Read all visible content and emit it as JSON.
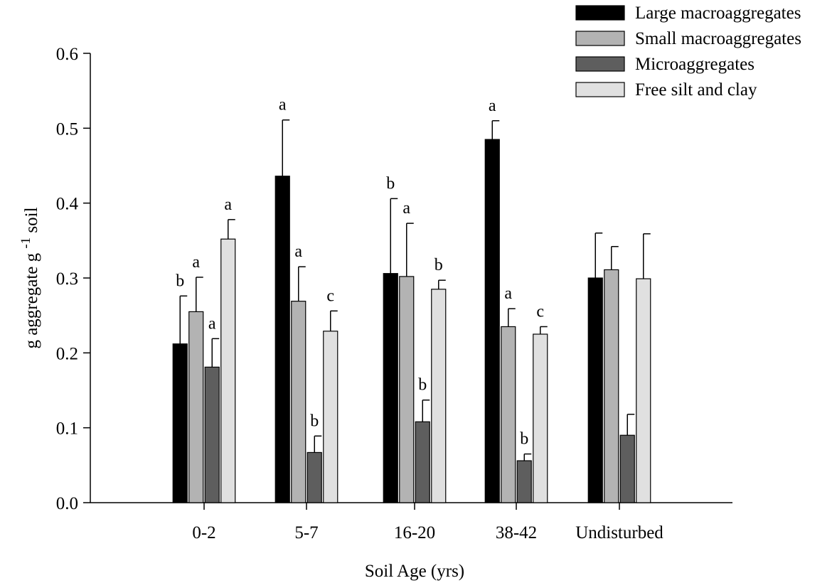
{
  "chart_data": {
    "type": "bar",
    "title": "",
    "xlabel": "Soil Age (yrs)",
    "ylabel": "g aggregate g",
    "ylabel_sup": "-1",
    "ylabel_tail": "soil",
    "ylim": [
      0,
      0.6
    ],
    "yticks": [
      "0.0",
      "0.1",
      "0.2",
      "0.3",
      "0.4",
      "0.5",
      "0.6"
    ],
    "categories": [
      "0-2",
      "5-7",
      "16-20",
      "38-42",
      "Undisturbed"
    ],
    "grid": false,
    "legend_position": "top-right",
    "series": [
      {
        "name": "Large macroaggregates",
        "color": "#000000",
        "values": [
          0.212,
          0.436,
          0.306,
          0.485,
          0.3
        ],
        "errors": [
          0.064,
          0.075,
          0.1,
          0.025,
          0.06
        ],
        "letters": [
          "b",
          "a",
          "b",
          "a",
          ""
        ]
      },
      {
        "name": "Small macroaggregates",
        "color": "#b3b3b3",
        "values": [
          0.255,
          0.269,
          0.302,
          0.235,
          0.311
        ],
        "errors": [
          0.046,
          0.046,
          0.071,
          0.024,
          0.031
        ],
        "letters": [
          "a",
          "a",
          "a",
          "a",
          ""
        ]
      },
      {
        "name": "Microaggregates",
        "color": "#5e5e5e",
        "values": [
          0.181,
          0.067,
          0.108,
          0.056,
          0.09
        ],
        "errors": [
          0.038,
          0.022,
          0.029,
          0.009,
          0.028
        ],
        "letters": [
          "a",
          "b",
          "b",
          "b",
          ""
        ]
      },
      {
        "name": "Free silt and clay",
        "color": "#e0e0e0",
        "values": [
          0.352,
          0.229,
          0.285,
          0.225,
          0.299
        ],
        "errors": [
          0.026,
          0.027,
          0.012,
          0.01,
          0.06
        ],
        "letters": [
          "a",
          "c",
          "b",
          "c",
          ""
        ]
      }
    ]
  }
}
